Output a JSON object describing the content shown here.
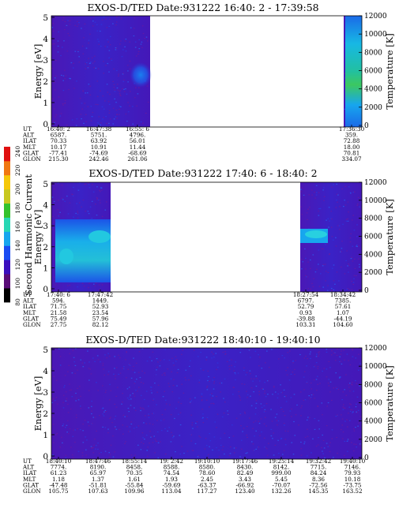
{
  "colorbar": {
    "label": "Second Harmonic Current",
    "ticks": [
      "80",
      "100",
      "120",
      "140",
      "160",
      "180",
      "200",
      "220",
      "240"
    ],
    "colors": [
      "#000000",
      "#5a0c78",
      "#3b0fbe",
      "#1a4cf2",
      "#17a6ee",
      "#28d7b4",
      "#34c22c",
      "#c8c820",
      "#f5c80a",
      "#f07812",
      "#e01010"
    ]
  },
  "panels": [
    {
      "title": "EXOS-D/TED   Date:931222  16:40: 2 - 17:39:58",
      "ylabel": "Energy [eV]",
      "y2label": "Temperature [K]",
      "yticks": [
        "0",
        "1",
        "2",
        "3",
        "4",
        "5"
      ],
      "y2ticks": [
        "0",
        "2000",
        "4000",
        "6000",
        "8000",
        "10000",
        "12000"
      ],
      "row_labels": [
        "UT",
        "ALT",
        "ILAT",
        "MLT",
        "GLAT",
        "GLON"
      ],
      "columns": [
        {
          "values": [
            "16:40: 2",
            "6587.",
            "70.33",
            "10.17",
            "-77.41",
            "215.30"
          ]
        },
        {
          "values": [
            "16:47:38",
            "5751.",
            "63.92",
            "10.91",
            "-74.69",
            "242.46"
          ]
        },
        {
          "values": [
            "16:55: 6",
            "4796.",
            "56.01",
            "11.44",
            "-68.69",
            "261.06"
          ]
        },
        {
          "values": [
            "17:36:30",
            "359.",
            "72.88",
            "18.00",
            "70.81",
            "334.07"
          ]
        }
      ]
    },
    {
      "title": "EXOS-D/TED   Date:931222  17:40: 6 - 18:40: 2",
      "ylabel": "Energy [eV]",
      "y2label": "Temperature [K]",
      "yticks": [
        "0",
        "1",
        "2",
        "3",
        "4",
        "5"
      ],
      "y2ticks": [
        "0",
        "2000",
        "4000",
        "6000",
        "8000",
        "10000",
        "12000"
      ],
      "row_labels": [
        "UT",
        "ALT",
        "ILAT",
        "MLT",
        "GLAT",
        "GLON"
      ],
      "columns": [
        {
          "values": [
            "17:40: 6",
            "594.",
            "71.75",
            "21.58",
            "75.49",
            "27.75"
          ]
        },
        {
          "values": [
            "17:47:42",
            "1449.",
            "52.93",
            "23.54",
            "57.96",
            "82.12"
          ]
        },
        {
          "values": [
            "18:27:54",
            "6797.",
            "52.79",
            "0.93",
            "-39.88",
            "103.31"
          ]
        },
        {
          "values": [
            "18:34:42",
            "7385.",
            "57.61",
            "1.07",
            "-44.19",
            "104.60"
          ]
        }
      ]
    },
    {
      "title": "EXOS-D/TED   Date:931222  18:40:10 - 19:40:10",
      "ylabel": "Energy [eV]",
      "y2label": "Temperature [K]",
      "yticks": [
        "0",
        "1",
        "2",
        "3",
        "4",
        "5"
      ],
      "y2ticks": [
        "0",
        "2000",
        "4000",
        "6000",
        "8000",
        "10000",
        "12000"
      ],
      "row_labels": [
        "UT",
        "ALT",
        "ILAT",
        "MLT",
        "GLAT",
        "GLON"
      ],
      "columns": [
        {
          "values": [
            "18:40:10",
            "7774.",
            "61.23",
            "1.18",
            "-47.48",
            "105.75"
          ]
        },
        {
          "values": [
            "18:47:46",
            "8190.",
            "65.97",
            "1.37",
            "-51.81",
            "107.63"
          ]
        },
        {
          "values": [
            "18:55:14",
            "8458.",
            "70.35",
            "1.61",
            "-55.84",
            "109.96"
          ]
        },
        {
          "values": [
            "19: 2:42",
            "8588.",
            "74.54",
            "1.93",
            "-59.69",
            "113.04"
          ]
        },
        {
          "values": [
            "19:10:10",
            "8580.",
            "78.60",
            "2.45",
            "-63.37",
            "117.27"
          ]
        },
        {
          "values": [
            "19:17:46",
            "8430.",
            "82.49",
            "3.43",
            "-66.92",
            "123.40"
          ]
        },
        {
          "values": [
            "19:25:14",
            "8142.",
            "999.00",
            "5.45",
            "-70.07",
            "132.26"
          ]
        },
        {
          "values": [
            "19:32:42",
            "7715.",
            "84.24",
            "8.36",
            "-72.56",
            "145.35"
          ]
        },
        {
          "values": [
            "19:40:10",
            "7146.",
            "79.93",
            "10.18",
            "-73.75",
            "163.52"
          ]
        }
      ]
    }
  ],
  "chart_data": [
    {
      "type": "heatmap",
      "title": "EXOS-D/TED   Date:931222  16:40: 2 - 17:39:58",
      "xlabel": "UT",
      "ylabel": "Energy [eV]",
      "y2label": "Temperature [K]",
      "ylim": [
        0,
        5
      ],
      "y2lim": [
        0,
        12000
      ],
      "colorbar_label": "Second Harmonic Current",
      "colorbar_range": [
        80,
        240
      ],
      "x_ticks": [
        "16:40: 2",
        "16:47:38",
        "16:55: 6",
        "17:36:30"
      ],
      "data_segments": [
        {
          "ut_start": "16:40: 2",
          "ut_end": "16:59:30",
          "features": [
            {
              "energy_range": [
                1.8,
                3.0
              ],
              "level": "enhanced"
            }
          ]
        },
        {
          "ut_start": "17:36:30",
          "ut_end": "17:39:58",
          "features": [
            {
              "energy_range": [
                0,
                5
              ],
              "level": "high"
            }
          ]
        }
      ]
    },
    {
      "type": "heatmap",
      "title": "EXOS-D/TED   Date:931222  17:40: 6 - 18:40: 2",
      "xlabel": "UT",
      "ylabel": "Energy [eV]",
      "y2label": "Temperature [K]",
      "ylim": [
        0,
        5
      ],
      "y2lim": [
        0,
        12000
      ],
      "colorbar_label": "Second Harmonic Current",
      "colorbar_range": [
        80,
        240
      ],
      "x_ticks": [
        "17:40: 6",
        "17:47:42",
        "18:27:54",
        "18:34:42"
      ],
      "data_segments": [
        {
          "ut_start": "17:40: 6",
          "ut_end": "17:51:00",
          "features": [
            {
              "energy_range": [
                1.2,
                3.4
              ],
              "level": "high"
            }
          ]
        },
        {
          "ut_start": "18:27:54",
          "ut_end": "18:40: 2",
          "features": [
            {
              "energy_range": [
                2.4,
                3.2
              ],
              "level": "high"
            }
          ]
        }
      ]
    },
    {
      "type": "heatmap",
      "title": "EXOS-D/TED   Date:931222  18:40:10 - 19:40:10",
      "xlabel": "UT",
      "ylabel": "Energy [eV]",
      "y2label": "Temperature [K]",
      "ylim": [
        0,
        5
      ],
      "y2lim": [
        0,
        12000
      ],
      "colorbar_label": "Second Harmonic Current",
      "colorbar_range": [
        80,
        240
      ],
      "x_ticks": [
        "18:40:10",
        "18:47:46",
        "18:55:14",
        "19: 2:42",
        "19:10:10",
        "19:17:46",
        "19:25:14",
        "19:32:42",
        "19:40:10"
      ],
      "data_segments": [
        {
          "ut_start": "18:40:10",
          "ut_end": "19:40:10",
          "features": [
            {
              "energy_range": [
                0,
                5
              ],
              "level": "background"
            }
          ]
        }
      ]
    }
  ]
}
